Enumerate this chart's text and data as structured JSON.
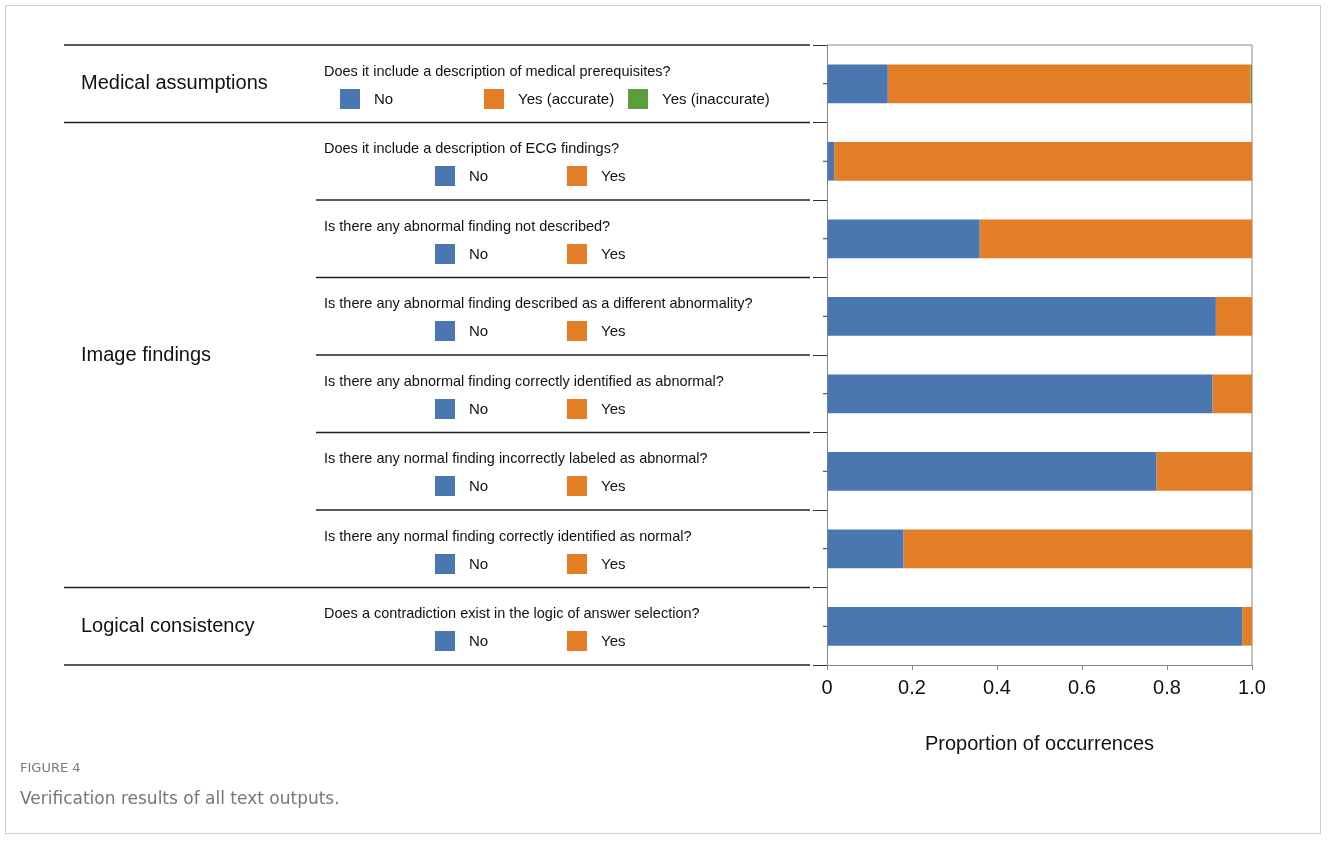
{
  "chart_data": {
    "type": "bar",
    "orientation": "horizontal",
    "stacked": true,
    "categories": [
      "Does it include a description of medical prerequisites?",
      "Does it include a description of ECG findings?",
      "Is there any abnormal finding not described?",
      "Is there any abnormal finding described as a different abnormality?",
      "Is there any abnormal finding correctly identified as abnormal?",
      "Is there any normal finding incorrectly labeled as abnormal?",
      "Is there any normal finding correctly identified as normal?",
      "Does a contradiction exist in the logic of answer selection?"
    ],
    "series": [
      {
        "name": "No",
        "color": "#4a77b0",
        "values": [
          0.143,
          0.017,
          0.359,
          0.915,
          0.907,
          0.775,
          0.18,
          0.977
        ]
      },
      {
        "name": "Yes (accurate)",
        "color": "#e37e26",
        "values": [
          0.854,
          null,
          null,
          null,
          null,
          null,
          null,
          null
        ]
      },
      {
        "name": "Yes (inaccurate)",
        "color": "#5b9e3c",
        "values": [
          0.003,
          null,
          null,
          null,
          null,
          null,
          null,
          null
        ]
      },
      {
        "name": "Yes",
        "color": "#e37e26",
        "values": [
          null,
          0.983,
          0.641,
          0.085,
          0.093,
          0.225,
          0.82,
          0.023
        ]
      }
    ],
    "xlim": [
      0,
      1
    ],
    "xticks": [
      0,
      0.2,
      0.4,
      0.6,
      0.8,
      {
        "value": 1,
        "label": "1.0"
      }
    ],
    "xlabel": "Proportion of occurrences",
    "grid": false,
    "legend": "left",
    "annotations": [
      "Medical assumptions",
      "Image findings",
      "Logical consistency",
      "FIGURE 4",
      "Verification results of all text outputs."
    ]
  }
}
